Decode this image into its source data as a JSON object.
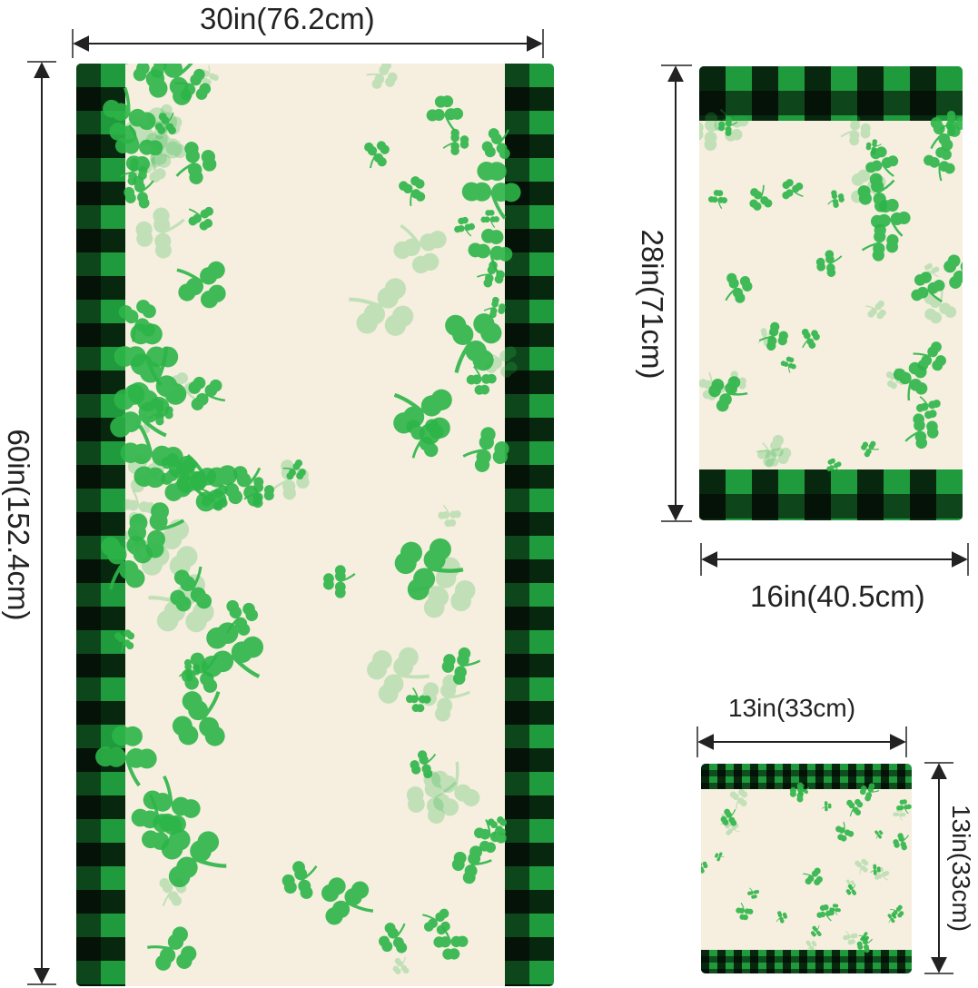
{
  "bath_towel": {
    "width_label": "30in(76.2cm)",
    "height_label": "60in(152.4cm)"
  },
  "hand_towel": {
    "width_label": "16in(40.5cm)",
    "height_label": "28in(71cm)"
  },
  "washcloth": {
    "width_label": "13in(33cm)",
    "height_label": "13in(33cm)"
  },
  "colors": {
    "green": "#1f9a3c",
    "shamrock": "#2db548",
    "cream": "#f6efdf",
    "black": "#111111"
  },
  "icons": [
    "shamrock-icon",
    "arrow-icon"
  ]
}
